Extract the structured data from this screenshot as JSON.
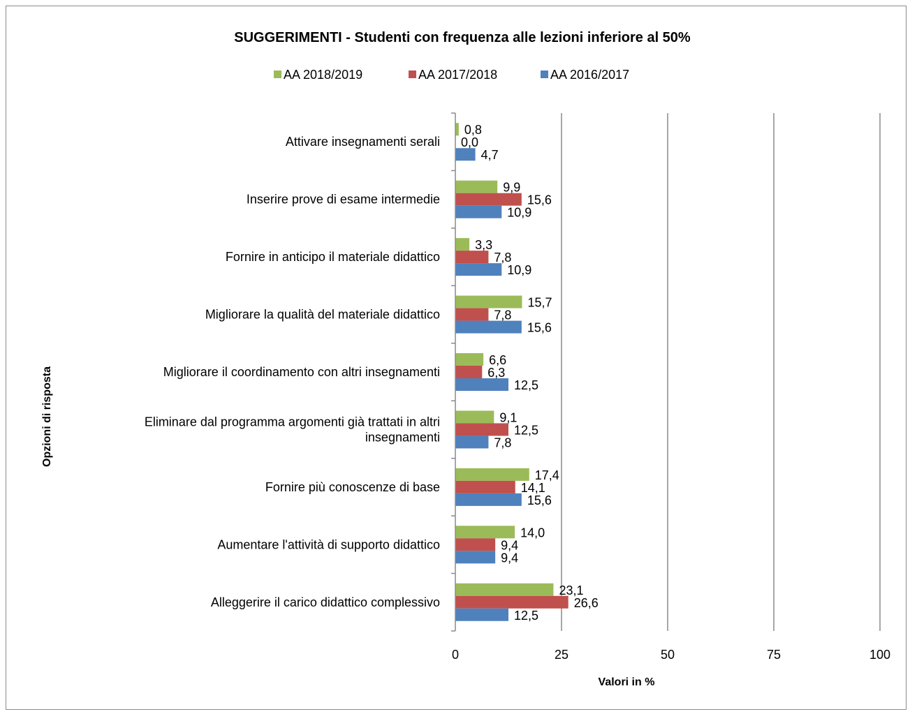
{
  "chart_data": {
    "type": "bar",
    "orientation": "horizontal",
    "title": "SUGGERIMENTI  - Studenti con frequenza alle lezioni  inferiore  al 50%",
    "xlabel": "Valori in %",
    "ylabel": "Opzioni di risposta",
    "xlim": [
      0,
      100
    ],
    "xticks": [
      "0",
      "25",
      "50",
      "75",
      "100"
    ],
    "grid": true,
    "legend_position": "top",
    "categories": [
      [
        "Attivare insegnamenti serali"
      ],
      [
        "Inserire prove di esame intermedie"
      ],
      [
        "Fornire in anticipo il materiale didattico"
      ],
      [
        "Migliorare la qualità del materiale didattico"
      ],
      [
        "Migliorare il coordinamento con  altri insegnamenti"
      ],
      [
        "Eliminare dal programma argomenti già trattati in altri",
        "insegnamenti"
      ],
      [
        "Fornire più conoscenze di base"
      ],
      [
        "Aumentare l'attività di supporto didattico"
      ],
      [
        "Alleggerire il carico didattico complessivo"
      ]
    ],
    "series": [
      {
        "name": "AA 2018/2019",
        "color": "#9bbb59",
        "values": [
          0.8,
          9.9,
          3.3,
          15.7,
          6.6,
          9.1,
          17.4,
          14.0,
          23.1
        ],
        "labels": [
          "0,8",
          "9,9",
          "3,3",
          "15,7",
          "6,6",
          "9,1",
          "17,4",
          "14,0",
          "23,1"
        ]
      },
      {
        "name": "AA 2017/2018",
        "color": "#c0504d",
        "values": [
          0.0,
          15.6,
          7.8,
          7.8,
          6.3,
          12.5,
          14.1,
          9.4,
          26.6
        ],
        "labels": [
          "0,0",
          "15,6",
          "7,8",
          "7,8",
          "6,3",
          "12,5",
          "14,1",
          "9,4",
          "26,6"
        ]
      },
      {
        "name": "AA 2016/2017",
        "color": "#4f81bd",
        "values": [
          4.7,
          10.9,
          10.9,
          15.6,
          12.5,
          7.8,
          15.6,
          9.4,
          12.5
        ],
        "labels": [
          "4,7",
          "10,9",
          "10,9",
          "15,6",
          "12,5",
          "7,8",
          "15,6",
          "9,4",
          "12,5"
        ]
      }
    ]
  }
}
